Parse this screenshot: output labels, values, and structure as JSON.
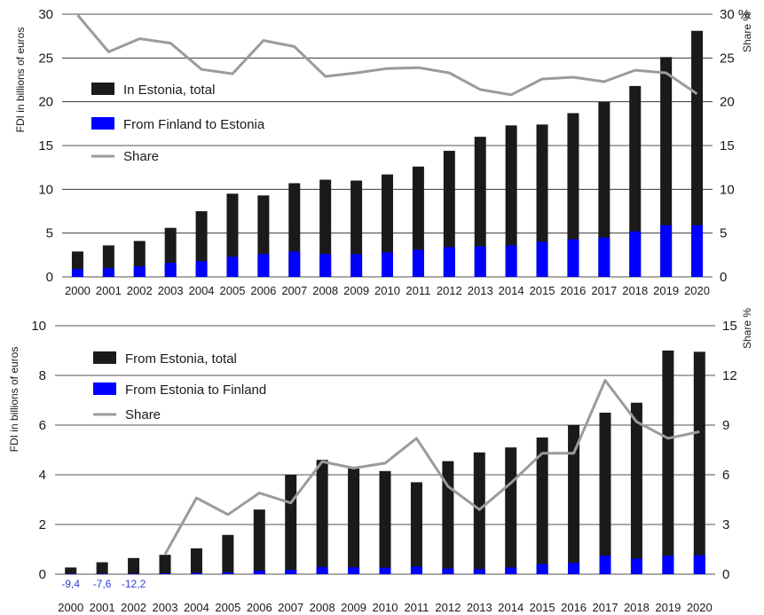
{
  "chart_data": [
    {
      "type": "bar",
      "categories": [
        "2000",
        "2001",
        "2002",
        "2003",
        "2004",
        "2005",
        "2006",
        "2007",
        "2008",
        "2009",
        "2010",
        "2011",
        "2012",
        "2013",
        "2014",
        "2015",
        "2016",
        "2017",
        "2018",
        "2019",
        "2020"
      ],
      "ylabel": "FDI in billions of euros",
      "y2label": "Share %",
      "ylim": [
        0,
        30
      ],
      "y2lim": [
        0,
        30
      ],
      "yticks": [
        "0",
        "5",
        "10",
        "15",
        "20",
        "25",
        "30"
      ],
      "y2ticks": [
        "0",
        "5",
        "10",
        "15",
        "20",
        "25",
        "30 %"
      ],
      "legend_position": "upper-left",
      "grid": true,
      "colors": {
        "total": "#1a1a1a",
        "part": "#0000ff",
        "share": "#9b9b9b"
      },
      "series": [
        {
          "name": "In Estonia, total",
          "kind": "bar",
          "values": [
            2.9,
            3.6,
            4.1,
            5.6,
            7.5,
            9.5,
            9.3,
            10.7,
            11.1,
            11.0,
            11.7,
            12.6,
            14.4,
            16.0,
            17.3,
            17.4,
            18.7,
            20.0,
            21.8,
            25.1,
            28.1
          ]
        },
        {
          "name": "From Finland to Estonia",
          "kind": "bar",
          "values": [
            0.9,
            1.0,
            1.2,
            1.6,
            1.8,
            2.3,
            2.6,
            2.9,
            2.6,
            2.6,
            2.8,
            3.1,
            3.4,
            3.5,
            3.6,
            4.0,
            4.3,
            4.5,
            5.2,
            5.9,
            5.9
          ]
        },
        {
          "name": "Share",
          "kind": "line",
          "axis": "right",
          "values": [
            29.9,
            25.7,
            27.2,
            26.7,
            23.7,
            23.2,
            27.0,
            26.3,
            22.9,
            23.3,
            23.8,
            23.9,
            23.3,
            21.4,
            20.8,
            22.6,
            22.8,
            22.3,
            23.6,
            23.3,
            20.9
          ]
        }
      ]
    },
    {
      "type": "bar",
      "categories": [
        "2000",
        "2001",
        "2002",
        "2003",
        "2004",
        "2005",
        "2006",
        "2007",
        "2008",
        "2009",
        "2010",
        "2011",
        "2012",
        "2013",
        "2014",
        "2015",
        "2016",
        "2017",
        "2018",
        "2019",
        "2020"
      ],
      "ylabel": "FDI in billions of euros",
      "y2label": "Share %",
      "ylim": [
        0,
        10
      ],
      "y2lim": [
        0,
        15
      ],
      "yticks": [
        "0",
        "2",
        "4",
        "6",
        "8",
        "10"
      ],
      "y2ticks": [
        "0",
        "3",
        "6",
        "9",
        "12",
        "15"
      ],
      "legend_position": "upper-left",
      "grid": true,
      "colors": {
        "total": "#1a1a1a",
        "part": "#0000ff",
        "share": "#9b9b9b"
      },
      "annotations": [
        "-9,4",
        "-7,6",
        "-12,2"
      ],
      "series": [
        {
          "name": "From Estonia, total",
          "kind": "bar",
          "values": [
            0.27,
            0.48,
            0.65,
            0.78,
            1.04,
            1.58,
            2.6,
            4.0,
            4.6,
            4.3,
            4.15,
            3.7,
            4.55,
            4.9,
            5.1,
            5.5,
            6.0,
            6.5,
            6.9,
            9.0,
            8.95
          ]
        },
        {
          "name": "From Estonia to Finland",
          "kind": "bar",
          "values": [
            0.02,
            0.02,
            0.02,
            0.03,
            0.05,
            0.07,
            0.14,
            0.17,
            0.29,
            0.28,
            0.26,
            0.31,
            0.23,
            0.2,
            0.27,
            0.41,
            0.45,
            0.75,
            0.63,
            0.74,
            0.76
          ]
        },
        {
          "name": "Share",
          "kind": "line",
          "axis": "right",
          "values": [
            null,
            null,
            null,
            1.2,
            4.6,
            3.6,
            4.9,
            4.3,
            6.8,
            6.4,
            6.7,
            8.2,
            5.3,
            3.9,
            5.5,
            7.3,
            7.3,
            11.7,
            9.2,
            8.2,
            8.6
          ]
        }
      ]
    }
  ]
}
